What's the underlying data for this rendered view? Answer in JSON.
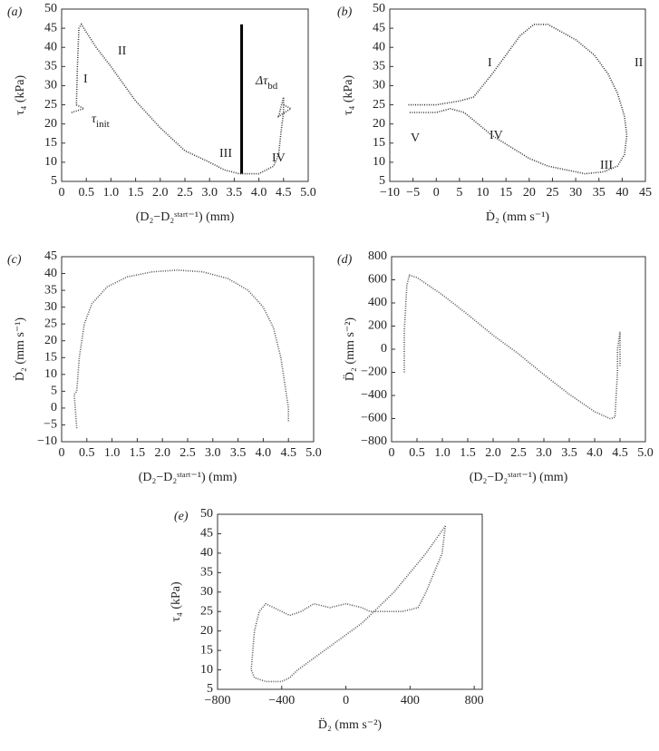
{
  "chart_data": [
    {
      "type": "line",
      "panel_label": "(a)",
      "x_label": "(D₂−D₂ˢᵗᵃʳᵗ⁻¹) (mm)",
      "y_label": "τ₄ (kPa)",
      "color": "#333",
      "xlim": [
        0,
        5
      ],
      "xticks": [
        0,
        0.5,
        {
          "value": 1,
          "label": "1.0"
        },
        1.5,
        {
          "value": 2,
          "label": "2.0"
        },
        2.5,
        {
          "value": 3,
          "label": "3.0"
        },
        3.5,
        {
          "value": 4,
          "label": "4.0"
        },
        4.5,
        {
          "value": 5,
          "label": "5.0"
        }
      ],
      "ylim": [
        5,
        50
      ],
      "yticks": [
        5,
        10,
        15,
        20,
        25,
        30,
        35,
        40,
        45,
        50
      ],
      "x": [
        0.2,
        0.45,
        0.3,
        0.32,
        0.35,
        0.4,
        0.5,
        0.7,
        1.0,
        1.5,
        2.0,
        2.5,
        3.0,
        3.3,
        3.6,
        4.0,
        4.3,
        4.4,
        4.45,
        4.5,
        4.5,
        4.4,
        4.65,
        4.5
      ],
      "values": [
        23,
        24,
        25,
        35,
        45,
        46,
        44,
        40,
        35,
        26,
        19,
        13,
        10,
        8,
        7,
        7,
        9,
        12,
        18,
        23,
        27,
        22,
        24,
        25
      ],
      "delta_bar": {
        "x": 3.65,
        "y0": 7,
        "y1": 46
      },
      "annotations": [
        "I",
        "II",
        "III",
        "IV",
        {
          "base": "τ",
          "sub": "init"
        },
        {
          "base": "Δτ",
          "sub": "bd"
        }
      ]
    },
    {
      "type": "line",
      "panel_label": "(b)",
      "x_label": "Ḋ₂ (mm s⁻¹)",
      "y_label": "τ₄ (kPa)",
      "color": "#333",
      "xlim": [
        -10,
        45
      ],
      "xticks": [
        {
          "value": -10,
          "label": "−10"
        },
        {
          "value": -5,
          "label": "−5"
        },
        0,
        5,
        10,
        15,
        20,
        25,
        30,
        35,
        40,
        45
      ],
      "ylim": [
        5,
        50
      ],
      "yticks": [
        5,
        10,
        15,
        20,
        25,
        30,
        35,
        40,
        45,
        50
      ],
      "x": [
        -6,
        0,
        5,
        8,
        10,
        12,
        15,
        18,
        21,
        24,
        27,
        30,
        34,
        37,
        39,
        40.5,
        41,
        40.5,
        39,
        36,
        32,
        28,
        24,
        20,
        16,
        12,
        9,
        6,
        3,
        0,
        -6
      ],
      "values": [
        25,
        25,
        26,
        27,
        30,
        33,
        38,
        43,
        46,
        46,
        44,
        42,
        38,
        33,
        28,
        22,
        17,
        12,
        9,
        7.5,
        7,
        8,
        9,
        11,
        14,
        17,
        20,
        23,
        24,
        23,
        23
      ],
      "annotations": [
        "I",
        "II",
        "III",
        "IV",
        "V"
      ]
    },
    {
      "type": "line",
      "panel_label": "(c)",
      "x_label": "(D₂−D₂ˢᵗᵃʳᵗ⁻¹) (mm)",
      "y_label": "Ḋ₂ (mm s⁻¹)",
      "color": "#555",
      "xlim": [
        0,
        5
      ],
      "xticks": [
        0,
        0.5,
        {
          "value": 1,
          "label": "1.0"
        },
        1.5,
        {
          "value": 2,
          "label": "2.0"
        },
        2.5,
        {
          "value": 3,
          "label": "3.0"
        },
        3.5,
        {
          "value": 4,
          "label": "4.0"
        },
        4.5,
        {
          "value": 5,
          "label": "5.0"
        }
      ],
      "ylim": [
        -10,
        45
      ],
      "yticks": [
        {
          "value": -10,
          "label": "−10"
        },
        {
          "value": -5,
          "label": "−5"
        },
        0,
        5,
        10,
        15,
        20,
        25,
        30,
        35,
        40,
        45
      ],
      "x": [
        0.3,
        0.25,
        0.3,
        0.35,
        0.45,
        0.6,
        0.9,
        1.3,
        1.8,
        2.3,
        2.8,
        3.3,
        3.7,
        4.0,
        4.2,
        4.35,
        4.45,
        4.5,
        4.5
      ],
      "values": [
        -6,
        4,
        5,
        15,
        25,
        31,
        36,
        39,
        40.5,
        41,
        40.5,
        38.5,
        35,
        30,
        24,
        15,
        5,
        0,
        -4
      ]
    },
    {
      "type": "line",
      "panel_label": "(d)",
      "x_label": "(D₂−D₂ˢᵗᵃʳᵗ⁻¹) (mm)",
      "y_label": "D̈₂ (mm s⁻²)",
      "color": "#555",
      "xlim": [
        0,
        5
      ],
      "xticks": [
        0,
        0.5,
        {
          "value": 1,
          "label": "1.0"
        },
        1.5,
        {
          "value": 2,
          "label": "2.0"
        },
        2.5,
        {
          "value": 3,
          "label": "3.0"
        },
        3.5,
        {
          "value": 4,
          "label": "4.0"
        },
        4.5,
        {
          "value": 5,
          "label": "5.0"
        }
      ],
      "ylim": [
        -800,
        800
      ],
      "yticks": [
        {
          "value": -800,
          "label": "−800"
        },
        {
          "value": -600,
          "label": "−600"
        },
        {
          "value": -400,
          "label": "−400"
        },
        {
          "value": -200,
          "label": "−200"
        },
        0,
        200,
        400,
        600,
        800
      ],
      "x": [
        0.25,
        0.25,
        0.3,
        0.35,
        0.5,
        1.0,
        1.5,
        2.0,
        2.5,
        3.0,
        3.5,
        4.0,
        4.3,
        4.4,
        4.45,
        4.45,
        4.5,
        4.5
      ],
      "values": [
        -200,
        150,
        550,
        640,
        620,
        470,
        300,
        120,
        -40,
        -220,
        -390,
        -540,
        -600,
        -590,
        -200,
        0,
        150,
        -150
      ]
    },
    {
      "type": "line",
      "panel_label": "(e)",
      "x_label": "D̈₂ (mm s⁻²)",
      "y_label": "τ₄ (kPa)",
      "color": "#555",
      "xlim": [
        -800,
        850
      ],
      "xticks": [
        {
          "value": -800,
          "label": "−800"
        },
        {
          "value": -400,
          "label": "−400"
        },
        0,
        400,
        800
      ],
      "ylim": [
        5,
        50
      ],
      "yticks": [
        5,
        10,
        15,
        20,
        25,
        30,
        35,
        40,
        45,
        50
      ],
      "x": [
        620,
        600,
        550,
        500,
        450,
        350,
        250,
        150,
        100,
        0,
        -100,
        -200,
        -280,
        -350,
        -400,
        -500,
        -540,
        -570,
        -590,
        -570,
        -500,
        -400,
        -350,
        -300,
        -200,
        -100,
        0,
        100,
        200,
        300,
        400,
        500,
        620
      ],
      "values": [
        47,
        40,
        35,
        30,
        26,
        25,
        25,
        25,
        26,
        27,
        26,
        27,
        25,
        24,
        25,
        27,
        25,
        20,
        10,
        8,
        7,
        7,
        8,
        10,
        13,
        16,
        19,
        22,
        26,
        30,
        35,
        40,
        47
      ]
    }
  ]
}
